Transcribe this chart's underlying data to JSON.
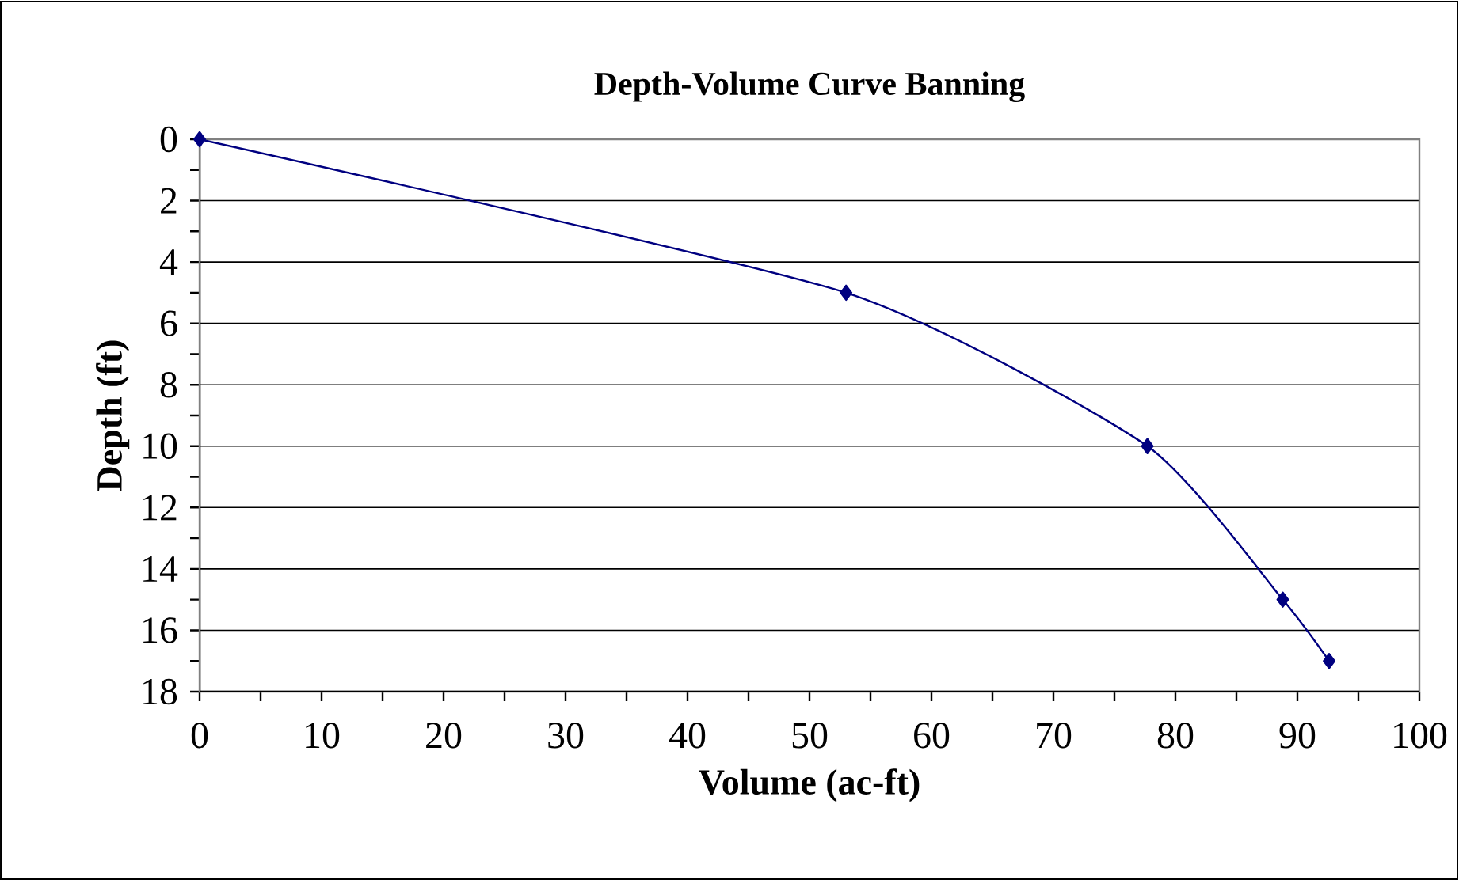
{
  "chart_data": {
    "type": "line",
    "title": "Depth-Volume Curve Banning",
    "xlabel": "Volume (ac-ft)",
    "ylabel": "Depth (ft)",
    "x": [
      0,
      53,
      77.7,
      88.8,
      92.6
    ],
    "series": [
      {
        "color": "#000080",
        "values": [
          0,
          5,
          10,
          15,
          17
        ]
      }
    ],
    "xlim": [
      0,
      100
    ],
    "xticks": [
      0,
      10,
      20,
      30,
      40,
      50,
      60,
      70,
      80,
      90,
      100
    ],
    "ylim": [
      18,
      0
    ],
    "yticks": [
      0,
      2,
      4,
      6,
      8,
      10,
      12,
      14,
      16,
      18
    ],
    "grid": "y",
    "marker": "diamond",
    "line_style": "solid"
  }
}
